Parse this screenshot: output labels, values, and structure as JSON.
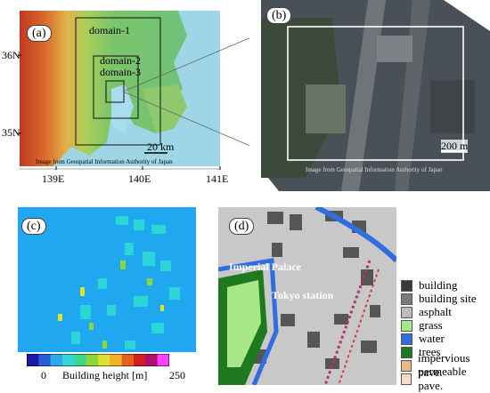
{
  "panels": {
    "a": {
      "label": "(a)",
      "domains": [
        "domain-1",
        "domain-2",
        "domain-3"
      ],
      "lat_labels": [
        "36N",
        "35N"
      ],
      "lon_labels": [
        "139E",
        "140E",
        "141E"
      ],
      "scale": "20 km",
      "credit": "Image from Geospatial Information Authority of Japan"
    },
    "b": {
      "label": "(b)",
      "scale": "200 m",
      "credit": "Image from Geospatial Information Authority of Japan"
    },
    "c": {
      "label": "(c)",
      "colorbar_min": "0",
      "colorbar_max": "250",
      "colorbar_title": "Building height [m]",
      "colorbar_colors": [
        "#1a1aa8",
        "#2a5cd6",
        "#2fa8ea",
        "#35d6d6",
        "#3ed68a",
        "#8cd63a",
        "#e0e030",
        "#f0b028",
        "#e86020",
        "#d02020",
        "#b01070",
        "#ff40ff"
      ]
    },
    "d": {
      "label": "(d)",
      "places": [
        "Imperial Palace",
        "Tokyo station"
      ]
    }
  },
  "legend": [
    {
      "label": "building",
      "color": "#3a3a3a"
    },
    {
      "label": "building site",
      "color": "#7a7a7a"
    },
    {
      "label": "asphalt",
      "color": "#bdbdbd"
    },
    {
      "label": "grass",
      "color": "#a8e68a"
    },
    {
      "label": "water",
      "color": "#2f6de0"
    },
    {
      "label": "trees",
      "color": "#1f7a1f"
    },
    {
      "label": "impervious pave.",
      "color": "#e6b98a"
    },
    {
      "label": "permeable pave.",
      "color": "#f5dcc8"
    }
  ]
}
